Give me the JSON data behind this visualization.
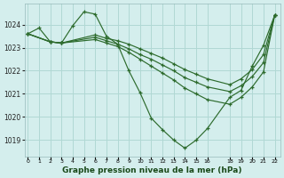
{
  "bg_color": "#d4eeed",
  "grid_color": "#b0d8d4",
  "line_color": "#2d6b2d",
  "title": "Graphe pression niveau de la mer (hPa)",
  "ylim": [
    1018.3,
    1024.9
  ],
  "yticks": [
    1019,
    1020,
    1021,
    1022,
    1023,
    1024
  ],
  "xlim": [
    -0.3,
    22.5
  ],
  "xtick_vals": [
    0,
    1,
    2,
    3,
    4,
    5,
    6,
    7,
    8,
    9,
    10,
    11,
    12,
    13,
    14,
    15,
    16,
    18,
    19,
    20,
    21,
    22
  ],
  "xtick_labels": [
    "0",
    "1",
    "2",
    "3",
    "4",
    "5",
    "6",
    "7",
    "8",
    "9",
    "10",
    "11",
    "12",
    "13",
    "14",
    "15",
    "16",
    "18",
    "19",
    "20",
    "21",
    "22"
  ],
  "series": [
    {
      "x": [
        0,
        1,
        2,
        3,
        4,
        5,
        6,
        7,
        8,
        9,
        10,
        11,
        12,
        13,
        14,
        15,
        16,
        18,
        19,
        20,
        21,
        22
      ],
      "y": [
        1023.6,
        1023.85,
        1023.25,
        1023.2,
        1023.95,
        1024.55,
        1024.45,
        1023.5,
        1023.15,
        1022.0,
        1021.05,
        1019.95,
        1019.45,
        1019.0,
        1018.65,
        1019.0,
        1019.5,
        1020.85,
        1021.15,
        1022.2,
        1023.1,
        1024.4
      ]
    },
    {
      "x": [
        0,
        2,
        3,
        6,
        7,
        8,
        9,
        10,
        11,
        12,
        13,
        14,
        15,
        16,
        18,
        19,
        20,
        21,
        22
      ],
      "y": [
        1023.6,
        1023.25,
        1023.2,
        1023.55,
        1023.4,
        1023.3,
        1023.15,
        1022.95,
        1022.75,
        1022.55,
        1022.3,
        1022.05,
        1021.85,
        1021.65,
        1021.4,
        1021.65,
        1022.05,
        1022.7,
        1024.4
      ]
    },
    {
      "x": [
        0,
        2,
        3,
        6,
        7,
        8,
        9,
        10,
        11,
        12,
        13,
        14,
        15,
        16,
        18,
        19,
        20,
        21,
        22
      ],
      "y": [
        1023.6,
        1023.25,
        1023.2,
        1023.45,
        1023.3,
        1023.15,
        1022.95,
        1022.7,
        1022.5,
        1022.25,
        1022.0,
        1021.7,
        1021.5,
        1021.3,
        1021.1,
        1021.35,
        1021.75,
        1022.35,
        1024.4
      ]
    },
    {
      "x": [
        0,
        2,
        3,
        6,
        7,
        8,
        9,
        10,
        11,
        12,
        13,
        14,
        15,
        16,
        18,
        19,
        20,
        21,
        22
      ],
      "y": [
        1023.6,
        1023.25,
        1023.2,
        1023.35,
        1023.2,
        1023.05,
        1022.8,
        1022.5,
        1022.2,
        1021.9,
        1021.6,
        1021.25,
        1021.0,
        1020.75,
        1020.55,
        1020.85,
        1021.3,
        1021.95,
        1024.4
      ]
    }
  ]
}
